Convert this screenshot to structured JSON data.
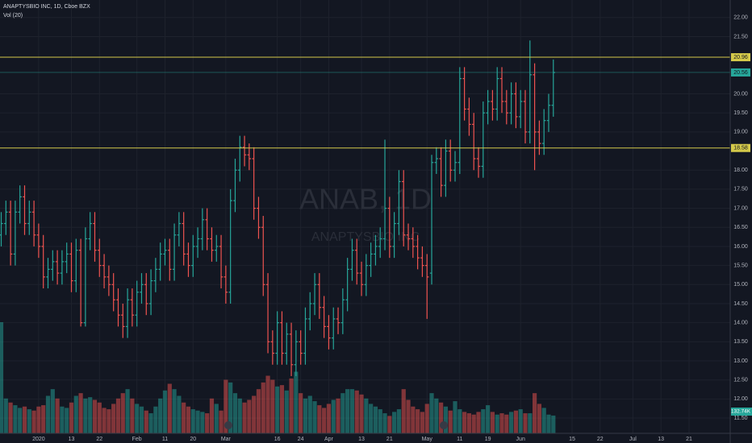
{
  "chart_data": {
    "type": "ohlc",
    "title": "ANAPTYSBIO INC, 1D, Cboe BZX",
    "indicator": "Vol (20)",
    "watermark": "ANAB, 1D",
    "watermark_sub": "ANAPTYSBIO INC",
    "up_color": "#26a69a",
    "down_color": "#ef5350",
    "grid": true,
    "xlim": [
      -0.26,
      155.8
    ],
    "ylim": [
      11.1,
      22.46
    ],
    "yticks": [
      {
        "value": 11.5,
        "label": "11.50"
      },
      {
        "value": 12,
        "label": "12.00"
      },
      {
        "value": 12.5,
        "label": "12.50"
      },
      {
        "value": 13,
        "label": "13.00"
      },
      {
        "value": 13.5,
        "label": "13.50"
      },
      {
        "value": 14,
        "label": "14.00"
      },
      {
        "value": 14.5,
        "label": "14.50"
      },
      {
        "value": 15,
        "label": "15.00"
      },
      {
        "value": 15.5,
        "label": "15.50"
      },
      {
        "value": 16,
        "label": "16.00"
      },
      {
        "value": 16.5,
        "label": "16.50"
      },
      {
        "value": 17,
        "label": "17.00"
      },
      {
        "value": 17.5,
        "label": "17.50"
      },
      {
        "value": 18,
        "label": "18.00"
      },
      {
        "value": 19,
        "label": "19.00"
      },
      {
        "value": 19.5,
        "label": "19.50"
      },
      {
        "value": 20,
        "label": "20.00"
      },
      {
        "value": 21.5,
        "label": "21.50"
      },
      {
        "value": 22,
        "label": "22.00"
      }
    ],
    "xticks": [
      {
        "value": 8,
        "label": "2020"
      },
      {
        "value": 15,
        "label": "13"
      },
      {
        "value": 21,
        "label": "22"
      },
      {
        "value": 29,
        "label": "Feb"
      },
      {
        "value": 35,
        "label": "11"
      },
      {
        "value": 41,
        "label": "20"
      },
      {
        "value": 48,
        "label": "Mar"
      },
      {
        "value": 59,
        "label": "16"
      },
      {
        "value": 64,
        "label": "24"
      },
      {
        "value": 70,
        "label": "Apr"
      },
      {
        "value": 77,
        "label": "13"
      },
      {
        "value": 83,
        "label": "21"
      },
      {
        "value": 91,
        "label": "May"
      },
      {
        "value": 98,
        "label": "11"
      },
      {
        "value": 104,
        "label": "19"
      },
      {
        "value": 111,
        "label": "Jun"
      },
      {
        "value": 122,
        "label": "15"
      },
      {
        "value": 128,
        "label": "22"
      },
      {
        "value": 135,
        "label": "Jul"
      },
      {
        "value": 141,
        "label": "13"
      },
      {
        "value": 147,
        "label": "21"
      }
    ],
    "levels": [
      {
        "value": 20.96,
        "color": "#d4c94a"
      },
      {
        "value": 18.58,
        "color": "#d4c94a"
      },
      {
        "value": 20.56,
        "color": "#26a69a"
      }
    ],
    "open": [
      16.3,
      16.6,
      16.9,
      15.8,
      16.9,
      17.3,
      16.6,
      16.9,
      16.3,
      16.0,
      15.2,
      15.4,
      15.6,
      15.3,
      15.6,
      15.8,
      15.1,
      15.9,
      14.0,
      16.2,
      16.6,
      15.9,
      15.5,
      15.2,
      15.0,
      14.6,
      14.2,
      13.9,
      14.6,
      14.2,
      14.8,
      15.0,
      14.5,
      15.1,
      15.4,
      15.8,
      15.9,
      15.4,
      16.3,
      16.6,
      15.8,
      15.5,
      16.0,
      16.2,
      16.7,
      16.2,
      15.9,
      16.0,
      15.2,
      14.8,
      17.2,
      18.0,
      18.6,
      18.4,
      18.3,
      17.0,
      16.5,
      15.0,
      13.5,
      13.2,
      14.0,
      13.2,
      13.7,
      12.9,
      13.5,
      13.2,
      14.1,
      14.5,
      15.0,
      14.4,
      13.9,
      13.6,
      14.1,
      14.0,
      14.6,
      15.4,
      15.9,
      15.3,
      15.0,
      15.5,
      15.8,
      16.0,
      16.2,
      17.0,
      16.0,
      16.6,
      17.7,
      16.3,
      16.2,
      16.0,
      15.7,
      15.5,
      15.3,
      18.2,
      18.3,
      17.6,
      18.5,
      18.0,
      18.2,
      20.4,
      19.6,
      19.2,
      18.3,
      18.1,
      19.5,
      19.8,
      19.6,
      20.4,
      19.8,
      19.5,
      20.0,
      19.4,
      19.8,
      19.0,
      20.5,
      19.0,
      18.7,
      19.3,
      19.7
    ],
    "high": [
      16.9,
      17.2,
      17.2,
      17.2,
      17.6,
      17.6,
      17.2,
      17.2,
      16.6,
      16.3,
      15.7,
      15.9,
      15.9,
      15.9,
      16.1,
      16.1,
      16.2,
      16.2,
      16.5,
      16.9,
      16.9,
      16.2,
      15.8,
      15.5,
      15.3,
      14.9,
      14.5,
      14.9,
      14.9,
      15.1,
      15.3,
      15.3,
      15.4,
      15.7,
      16.1,
      16.2,
      16.2,
      16.6,
      16.9,
      16.9,
      16.1,
      16.3,
      16.5,
      17.0,
      17.0,
      16.5,
      16.3,
      16.3,
      15.5,
      17.5,
      18.3,
      18.9,
      18.9,
      18.7,
      18.6,
      17.3,
      16.8,
      15.3,
      13.8,
      14.3,
      14.3,
      14.0,
      14.0,
      13.8,
      13.8,
      14.4,
      14.8,
      15.3,
      15.3,
      14.7,
      14.2,
      14.4,
      14.4,
      14.9,
      15.7,
      16.2,
      16.2,
      15.6,
      15.8,
      16.1,
      16.3,
      16.5,
      18.8,
      17.3,
      16.9,
      18.0,
      18.0,
      16.6,
      16.5,
      16.3,
      16.0,
      15.8,
      18.4,
      18.6,
      18.6,
      18.8,
      18.8,
      18.5,
      20.7,
      20.7,
      19.9,
      19.5,
      18.6,
      19.8,
      20.1,
      20.1,
      20.7,
      20.7,
      20.1,
      20.3,
      20.3,
      20.1,
      20.1,
      21.4,
      20.8,
      19.3,
      19.6,
      20.0,
      20.9
    ],
    "low": [
      16.0,
      16.3,
      15.5,
      15.5,
      16.6,
      16.3,
      16.3,
      16.0,
      15.7,
      14.9,
      14.9,
      15.1,
      15.0,
      15.0,
      15.3,
      14.8,
      14.8,
      13.9,
      13.9,
      15.9,
      15.6,
      15.2,
      14.9,
      14.7,
      14.3,
      13.9,
      13.6,
      13.6,
      13.9,
      13.9,
      14.5,
      14.2,
      14.2,
      14.8,
      15.1,
      15.5,
      15.1,
      15.1,
      16.0,
      15.5,
      15.2,
      15.2,
      15.7,
      15.9,
      15.9,
      15.6,
      15.6,
      14.9,
      14.5,
      14.5,
      16.9,
      17.7,
      18.1,
      18.0,
      16.7,
      16.2,
      14.7,
      13.2,
      12.9,
      12.9,
      12.9,
      12.9,
      12.6,
      12.6,
      12.9,
      12.9,
      13.8,
      14.2,
      14.1,
      13.6,
      13.3,
      13.3,
      13.7,
      13.7,
      14.3,
      15.1,
      15.0,
      14.7,
      14.7,
      15.2,
      15.5,
      15.7,
      15.9,
      15.7,
      15.7,
      16.3,
      16.0,
      15.9,
      15.7,
      15.4,
      15.2,
      14.1,
      15.0,
      17.9,
      17.3,
      17.3,
      17.7,
      17.7,
      17.9,
      19.3,
      18.9,
      18.0,
      17.8,
      17.8,
      19.2,
      19.3,
      19.3,
      19.5,
      19.2,
      19.2,
      19.1,
      19.1,
      18.7,
      18.7,
      18.0,
      18.4,
      18.4,
      19.0,
      19.4
    ],
    "close": [
      16.6,
      16.9,
      15.8,
      16.9,
      17.3,
      16.6,
      16.9,
      16.3,
      16.0,
      15.2,
      15.4,
      15.6,
      15.3,
      15.6,
      15.8,
      15.1,
      15.9,
      14.0,
      16.2,
      16.6,
      15.9,
      15.5,
      15.2,
      15.0,
      14.6,
      14.2,
      13.9,
      14.6,
      14.2,
      14.8,
      15.0,
      14.5,
      15.1,
      15.4,
      15.8,
      15.9,
      15.4,
      16.3,
      16.6,
      15.8,
      15.5,
      16.0,
      16.2,
      16.7,
      16.2,
      15.9,
      16.0,
      15.2,
      14.8,
      17.2,
      18.0,
      18.6,
      18.4,
      18.3,
      17.0,
      16.5,
      15.0,
      13.5,
      13.2,
      14.0,
      13.2,
      13.7,
      12.9,
      13.5,
      13.2,
      14.1,
      14.5,
      15.0,
      14.4,
      13.9,
      13.6,
      14.1,
      14.0,
      14.6,
      15.4,
      15.9,
      15.3,
      15.0,
      15.5,
      15.8,
      16.0,
      16.2,
      17.0,
      16.0,
      16.6,
      17.7,
      16.3,
      16.2,
      16.0,
      15.7,
      15.5,
      15.2,
      18.2,
      18.3,
      17.6,
      18.5,
      18.0,
      18.2,
      20.4,
      19.6,
      19.2,
      18.3,
      18.1,
      19.5,
      19.8,
      19.6,
      20.4,
      19.8,
      19.5,
      20.0,
      19.4,
      19.8,
      19.0,
      20.5,
      19.0,
      18.7,
      19.3,
      19.7,
      20.56
    ],
    "volume": {
      "values": [
        830,
        260,
        230,
        210,
        190,
        200,
        180,
        170,
        200,
        210,
        280,
        330,
        260,
        200,
        190,
        230,
        280,
        300,
        260,
        270,
        250,
        230,
        190,
        180,
        220,
        260,
        300,
        330,
        260,
        220,
        200,
        170,
        150,
        200,
        260,
        320,
        370,
        330,
        280,
        230,
        200,
        180,
        170,
        160,
        150,
        260,
        220,
        170,
        400,
        380,
        300,
        260,
        230,
        250,
        280,
        330,
        380,
        430,
        400,
        350,
        360,
        320,
        410,
        460,
        300,
        260,
        280,
        240,
        210,
        190,
        220,
        250,
        260,
        300,
        330,
        330,
        320,
        290,
        260,
        220,
        200,
        180,
        150,
        130,
        160,
        180,
        330,
        250,
        200,
        180,
        160,
        220,
        300,
        260,
        230,
        200,
        170,
        240,
        180,
        160,
        150,
        140,
        160,
        180,
        210,
        160,
        140,
        150,
        140,
        160,
        170,
        180,
        150,
        150,
        300,
        220,
        190,
        140,
        132.74
      ],
      "last_label": "132.74K"
    }
  }
}
